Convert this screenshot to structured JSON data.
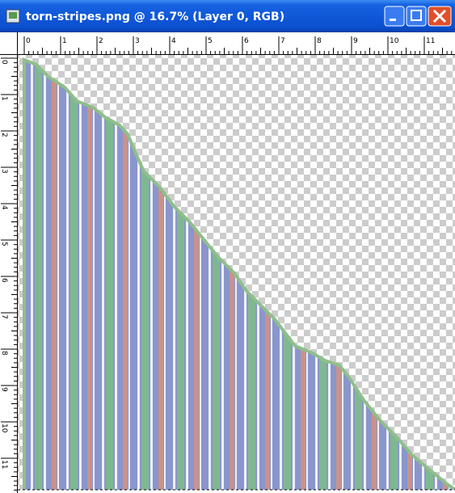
{
  "window": {
    "title": "torn-stripes.png @ 16.7% (Layer 0, RGB)"
  },
  "rulers": {
    "top": [
      "0",
      "1",
      "2",
      "3",
      "4",
      "5",
      "6",
      "7",
      "8",
      "9",
      "10",
      "11"
    ],
    "left": [
      "0",
      "1",
      "2",
      "3",
      "4",
      "5",
      "6",
      "7",
      "8",
      "9",
      "10",
      "11"
    ]
  }
}
